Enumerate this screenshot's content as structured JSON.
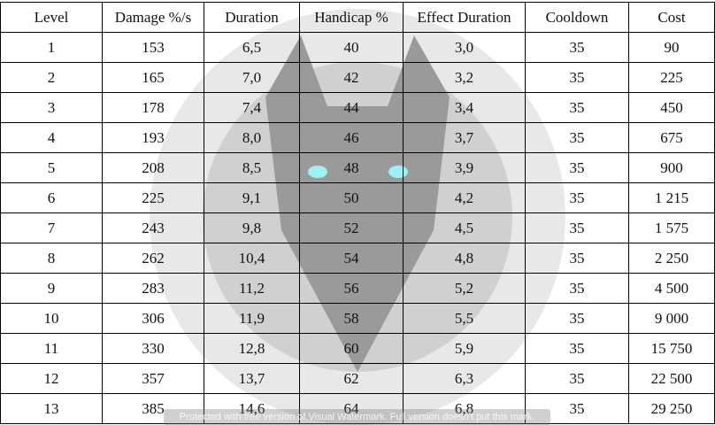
{
  "table": {
    "header": [
      "Level",
      "Damage %/s",
      "Duration",
      "Handicap %",
      "Effect Duration",
      "Cooldown",
      "Cost"
    ],
    "rows": [
      [
        "1",
        "153",
        "6,5",
        "40",
        "3,0",
        "35",
        "90"
      ],
      [
        "2",
        "165",
        "7,0",
        "42",
        "3,2",
        "35",
        "225"
      ],
      [
        "3",
        "178",
        "7,4",
        "44",
        "3,4",
        "35",
        "450"
      ],
      [
        "4",
        "193",
        "8,0",
        "46",
        "3,7",
        "35",
        "675"
      ],
      [
        "5",
        "208",
        "8,5",
        "48",
        "3,9",
        "35",
        "900"
      ],
      [
        "6",
        "225",
        "9,1",
        "50",
        "4,2",
        "35",
        "1 215"
      ],
      [
        "7",
        "243",
        "9,8",
        "52",
        "4,5",
        "35",
        "1 575"
      ],
      [
        "8",
        "262",
        "10,4",
        "54",
        "4,8",
        "35",
        "2 250"
      ],
      [
        "9",
        "283",
        "11,2",
        "56",
        "5,2",
        "35",
        "4 500"
      ],
      [
        "10",
        "306",
        "11,9",
        "58",
        "5,5",
        "35",
        "9 000"
      ],
      [
        "11",
        "330",
        "12,8",
        "60",
        "5,9",
        "35",
        "15 750"
      ],
      [
        "12",
        "357",
        "13,7",
        "62",
        "6,3",
        "35",
        "22 500"
      ],
      [
        "13",
        "385",
        "14,6",
        "64",
        "6,8",
        "35",
        "29 250"
      ]
    ]
  },
  "watermark": "Protected with free version of Visual Watermark. Full version doesn't put this mark."
}
